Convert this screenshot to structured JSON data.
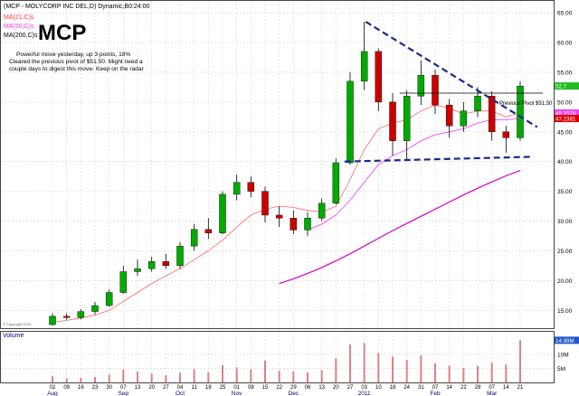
{
  "header": {
    "title": "(MCP - MOLYCORP INC DEL,D) Dynamic,B0:24:00",
    "ma_labels": [
      "MA(21,C)s",
      "MA(50,C)s",
      "MA(200,C)s"
    ],
    "symbol": "MCP",
    "note_lines": [
      "Powerful move yesterday, up 3 points, 18%",
      "Cleared the previous pivot of $51.50.  Might need a",
      "couple days to digest this move- Keep on the radar"
    ],
    "pivot_label": "Previous Pivot $51.50",
    "copyright": "© Copyright 2010"
  },
  "colors": {
    "up": "#00aa00",
    "down": "#cc0000",
    "ma21": "#ff6666",
    "ma50": "#ff44ff",
    "ma200": "#cc00cc",
    "trend": "#1a2a8a",
    "grid": "#cfcfcf",
    "volume": "#e08080",
    "badge_green": "#22bb22",
    "badge_pink": "#ee44ee",
    "badge_red": "#dd0000",
    "badge_blue": "#2255cc"
  },
  "chart_data": {
    "type": "candlestick",
    "ylim": [
      12,
      67
    ],
    "y_ticks": [
      "15.00",
      "20.00",
      "25.00",
      "30.00",
      "35.00",
      "40.00",
      "45.00",
      "50.00",
      "55.00",
      "60.00",
      "65.00"
    ],
    "y_tick_values": [
      15,
      20,
      25,
      30,
      35,
      40,
      45,
      50,
      55,
      60,
      65
    ],
    "price_badges": [
      {
        "value": 52.7,
        "text": "52.7"
      },
      {
        "value": 48.1574,
        "text": "48.1574"
      },
      {
        "value": 47.2381,
        "text": "47.2381"
      }
    ],
    "x_day_ticks": [
      "02",
      "09",
      "16",
      "23",
      "30",
      "07",
      "13",
      "20",
      "27",
      "04",
      "11",
      "18",
      "25",
      "01",
      "08",
      "15",
      "22",
      "29",
      "06",
      "13",
      "20",
      "27",
      "03",
      "10",
      "18",
      "24",
      "31",
      "07",
      "14",
      "22",
      "28",
      "07",
      "14",
      "21"
    ],
    "x_month_labels": [
      {
        "label": "Aug",
        "index": 0
      },
      {
        "label": "Sep",
        "index": 5
      },
      {
        "label": "Oct",
        "index": 9
      },
      {
        "label": "Nov",
        "index": 13
      },
      {
        "label": "Dec",
        "index": 17
      },
      {
        "label": "2011",
        "index": 22
      },
      {
        "label": "Feb",
        "index": 27
      },
      {
        "label": "Mar",
        "index": 31
      }
    ],
    "volume_label": "Volume",
    "volume_ticks": [
      "10M",
      "5M"
    ],
    "volume_tick_values": [
      10,
      5
    ],
    "volume_badge": "14.99M",
    "volume_badge_value": 14.99,
    "volume_ylim": [
      0,
      18
    ],
    "pivot_price": 51.5,
    "support": {
      "from_week": 20.6,
      "to_week": 33.8,
      "y1": 40,
      "y2": 40.8
    },
    "resistance": {
      "from_week": 22.1,
      "to_week": 34.2,
      "y1": 63.5,
      "y2": 45.8
    },
    "weekly": [
      {
        "week": "02",
        "o": 12.6,
        "h": 14.5,
        "l": 12.4,
        "c": 14.0,
        "vol": 2.2
      },
      {
        "week": "09",
        "o": 14.0,
        "h": 14.5,
        "l": 13.4,
        "c": 13.8,
        "vol": 1.4
      },
      {
        "week": "16",
        "o": 13.8,
        "h": 15.2,
        "l": 13.5,
        "c": 14.8,
        "vol": 1.6
      },
      {
        "week": "23",
        "o": 14.8,
        "h": 16.4,
        "l": 14.3,
        "c": 15.8,
        "vol": 1.9
      },
      {
        "week": "30",
        "o": 15.8,
        "h": 18.5,
        "l": 15.6,
        "c": 18.0,
        "vol": 2.8
      },
      {
        "week": "07",
        "o": 18.0,
        "h": 22.5,
        "l": 17.8,
        "c": 21.5,
        "vol": 4.5
      },
      {
        "week": "13",
        "o": 21.5,
        "h": 23.5,
        "l": 20.8,
        "c": 22.0,
        "vol": 3.8
      },
      {
        "week": "20",
        "o": 22.0,
        "h": 24.0,
        "l": 21.5,
        "c": 23.2,
        "vol": 3.1
      },
      {
        "week": "27",
        "o": 23.2,
        "h": 24.5,
        "l": 22.0,
        "c": 22.5,
        "vol": 2.6
      },
      {
        "week": "04",
        "o": 22.5,
        "h": 26.5,
        "l": 22.0,
        "c": 25.8,
        "vol": 3.4
      },
      {
        "week": "11",
        "o": 25.8,
        "h": 29.5,
        "l": 25.0,
        "c": 28.6,
        "vol": 4.7
      },
      {
        "week": "18",
        "o": 28.6,
        "h": 30.5,
        "l": 27.0,
        "c": 28.0,
        "vol": 3.6
      },
      {
        "week": "25",
        "o": 28.0,
        "h": 35.0,
        "l": 27.8,
        "c": 34.5,
        "vol": 6.2
      },
      {
        "week": "01",
        "o": 34.5,
        "h": 37.8,
        "l": 33.5,
        "c": 36.5,
        "vol": 5.4
      },
      {
        "week": "08",
        "o": 36.5,
        "h": 37.5,
        "l": 34.0,
        "c": 35.0,
        "vol": 4.6
      },
      {
        "week": "15",
        "o": 35.0,
        "h": 35.8,
        "l": 29.8,
        "c": 31.0,
        "vol": 7.8
      },
      {
        "week": "22",
        "o": 31.0,
        "h": 32.5,
        "l": 29.0,
        "c": 30.5,
        "vol": 4.2
      },
      {
        "week": "29",
        "o": 30.5,
        "h": 31.8,
        "l": 27.8,
        "c": 28.5,
        "vol": 3.9
      },
      {
        "week": "06",
        "o": 28.5,
        "h": 31.5,
        "l": 27.5,
        "c": 30.5,
        "vol": 3.5
      },
      {
        "week": "13",
        "o": 30.5,
        "h": 33.8,
        "l": 30.0,
        "c": 33.0,
        "vol": 4.4
      },
      {
        "week": "20",
        "o": 33.0,
        "h": 40.5,
        "l": 32.8,
        "c": 39.8,
        "vol": 8.6
      },
      {
        "week": "27",
        "o": 39.8,
        "h": 55.0,
        "l": 39.5,
        "c": 53.5,
        "vol": 13.5
      },
      {
        "week": "03",
        "o": 53.5,
        "h": 63.5,
        "l": 52.0,
        "c": 58.5,
        "vol": 14.0
      },
      {
        "week": "10",
        "o": 58.5,
        "h": 59.0,
        "l": 48.5,
        "c": 50.0,
        "vol": 10.5
      },
      {
        "week": "18",
        "o": 50.0,
        "h": 51.5,
        "l": 41.0,
        "c": 43.5,
        "vol": 9.2
      },
      {
        "week": "24",
        "o": 43.5,
        "h": 52.0,
        "l": 40.2,
        "c": 51.0,
        "vol": 8.0
      },
      {
        "week": "31",
        "o": 51.0,
        "h": 57.0,
        "l": 49.5,
        "c": 54.5,
        "vol": 9.6
      },
      {
        "week": "07",
        "o": 54.5,
        "h": 55.5,
        "l": 48.0,
        "c": 49.5,
        "vol": 6.8
      },
      {
        "week": "14",
        "o": 49.5,
        "h": 50.5,
        "l": 44.0,
        "c": 46.0,
        "vol": 6.0
      },
      {
        "week": "22",
        "o": 46.0,
        "h": 50.0,
        "l": 45.0,
        "c": 48.5,
        "vol": 5.2
      },
      {
        "week": "28",
        "o": 48.5,
        "h": 52.5,
        "l": 47.5,
        "c": 51.0,
        "vol": 5.8
      },
      {
        "week": "07",
        "o": 51.0,
        "h": 51.8,
        "l": 43.5,
        "c": 45.0,
        "vol": 7.0
      },
      {
        "week": "14",
        "o": 45.0,
        "h": 46.0,
        "l": 41.5,
        "c": 44.0,
        "vol": 6.4
      },
      {
        "week": "21",
        "o": 44.0,
        "h": 53.5,
        "l": 43.5,
        "c": 52.7,
        "vol": 14.99
      }
    ],
    "ma21": [
      13.0,
      13.3,
      13.7,
      14.2,
      15.0,
      16.5,
      18.0,
      19.5,
      20.8,
      22.0,
      23.5,
      25.0,
      26.8,
      29.0,
      31.0,
      32.0,
      32.5,
      32.3,
      31.8,
      31.5,
      32.5,
      37.0,
      42.0,
      45.5,
      46.5,
      47.0,
      48.5,
      49.5,
      49.0,
      48.0,
      48.5,
      48.5,
      47.5,
      48.2
    ],
    "ma50": [
      null,
      null,
      null,
      null,
      null,
      null,
      null,
      null,
      null,
      null,
      null,
      null,
      null,
      null,
      null,
      null,
      null,
      null,
      28.5,
      29.5,
      31.0,
      33.5,
      36.5,
      39.5,
      41.0,
      42.0,
      43.5,
      44.5,
      45.0,
      45.5,
      46.5,
      47.0,
      47.0,
      47.24
    ],
    "ma200": [
      null,
      null,
      null,
      null,
      null,
      null,
      null,
      null,
      null,
      null,
      null,
      null,
      null,
      null,
      null,
      null,
      19.5,
      20.3,
      21.2,
      22.2,
      23.3,
      24.5,
      25.8,
      27.1,
      28.4,
      29.6,
      30.8,
      32.0,
      33.2,
      34.4,
      35.5,
      36.6,
      37.6,
      38.5
    ]
  }
}
